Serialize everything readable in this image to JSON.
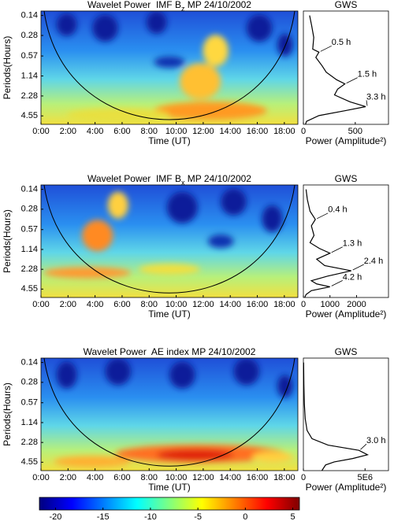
{
  "chart_data": [
    {
      "type": "heatmap",
      "title": "Wavelet Power  IMF B",
      "title_sub": "z",
      "title_end": " MP 24/10/2002",
      "xlabel": "Time (UT)",
      "ylabel": "Periods(Hours)",
      "xlim": [
        0,
        19
      ],
      "xticks": [
        {
          "value": 0,
          "label": "0:00"
        },
        {
          "value": 2,
          "label": "2:00"
        },
        {
          "value": 4,
          "label": "4:00"
        },
        {
          "value": 6,
          "label": "6:00"
        },
        {
          "value": 8,
          "label": "8:00"
        },
        {
          "value": 10,
          "label": "10:00"
        },
        {
          "value": 12,
          "label": "12:00"
        },
        {
          "value": 14,
          "label": "14:00"
        },
        {
          "value": 16,
          "label": "16:00"
        },
        {
          "value": 18,
          "label": "18:00"
        }
      ],
      "ylim": [
        0.12,
        6.1
      ],
      "yticks": [
        0.14,
        0.28,
        0.57,
        1.14,
        2.28,
        4.55
      ],
      "log_y": true
    },
    {
      "type": "line",
      "title": "GWS",
      "xlabel": "Power (Amplitude²)",
      "xlim": [
        0,
        820
      ],
      "xticks": [
        0,
        500
      ],
      "ylim": [
        0.12,
        6.1
      ],
      "log_y": true,
      "series": [
        {
          "color": "#000000",
          "values": [
            60,
            80,
            100,
            90,
            150,
            120,
            180,
            220,
            320,
            400,
            330,
            300,
            450,
            600,
            400,
            150,
            30,
            20
          ],
          "periods": [
            0.14,
            0.2,
            0.3,
            0.45,
            0.5,
            0.6,
            0.8,
            1.0,
            1.3,
            1.5,
            1.8,
            2.2,
            2.8,
            3.3,
            3.8,
            4.5,
            5.5,
            6.1
          ]
        }
      ],
      "annotations": [
        {
          "text": "0.5 h",
          "x": 150,
          "y": 0.5
        },
        {
          "text": "1.5 h",
          "x": 400,
          "y": 1.5
        },
        {
          "text": "3.3 h",
          "x": 600,
          "y": 3.3
        }
      ]
    },
    {
      "type": "heatmap",
      "title": "Wavelet Power  IMF B",
      "title_sub": "x",
      "title_end": " MP 24/10/2002",
      "xlabel": "Time (UT)",
      "ylabel": "Periods(Hours)",
      "xlim": [
        0,
        19
      ],
      "xticks": [
        {
          "value": 0,
          "label": "0:00"
        },
        {
          "value": 2,
          "label": "2:00"
        },
        {
          "value": 4,
          "label": "4:00"
        },
        {
          "value": 6,
          "label": "6:00"
        },
        {
          "value": 8,
          "label": "8:00"
        },
        {
          "value": 10,
          "label": "10:00"
        },
        {
          "value": 12,
          "label": "12:00"
        },
        {
          "value": 14,
          "label": "14:00"
        },
        {
          "value": 16,
          "label": "16:00"
        },
        {
          "value": 18,
          "label": "18:00"
        }
      ],
      "ylim": [
        0.12,
        6.1
      ],
      "yticks": [
        0.14,
        0.28,
        0.57,
        1.14,
        2.28,
        4.55
      ],
      "log_y": true
    },
    {
      "type": "line",
      "title": "GWS",
      "xlabel": "Power (Amplitude²)",
      "xlim": [
        0,
        3200
      ],
      "xticks": [
        0,
        1000,
        2000
      ],
      "ylim": [
        0.12,
        6.1
      ],
      "log_y": true,
      "series": [
        {
          "color": "#000000",
          "values": [
            100,
            150,
            250,
            450,
            300,
            400,
            250,
            600,
            1000,
            500,
            800,
            1800,
            900,
            300,
            500,
            1000,
            300,
            100,
            50
          ],
          "periods": [
            0.14,
            0.2,
            0.3,
            0.4,
            0.5,
            0.7,
            0.9,
            1.1,
            1.3,
            1.6,
            2.0,
            2.4,
            2.9,
            3.4,
            3.8,
            4.2,
            4.8,
            5.5,
            6.1
          ]
        }
      ],
      "annotations": [
        {
          "text": "0.4 h",
          "x": 450,
          "y": 0.4
        },
        {
          "text": "1.3 h",
          "x": 1000,
          "y": 1.3
        },
        {
          "text": "2.4 h",
          "x": 1800,
          "y": 2.4
        },
        {
          "text": "4.2 h",
          "x": 1000,
          "y": 4.2
        }
      ]
    },
    {
      "type": "heatmap",
      "title": "Wavelet Power  AE index MP 24/10/2002",
      "xlabel": "Time (UT)",
      "ylabel": "Periods(Hours)",
      "xlim": [
        0,
        19
      ],
      "xticks": [
        {
          "value": 0,
          "label": "0:00"
        },
        {
          "value": 2,
          "label": "2:00"
        },
        {
          "value": 4,
          "label": "4:00"
        },
        {
          "value": 6,
          "label": "6:00"
        },
        {
          "value": 8,
          "label": "8:00"
        },
        {
          "value": 10,
          "label": "10:00"
        },
        {
          "value": 12,
          "label": "12:00"
        },
        {
          "value": 14,
          "label": "14:00"
        },
        {
          "value": 16,
          "label": "16:00"
        },
        {
          "value": 18,
          "label": "18:00"
        }
      ],
      "ylim": [
        0.12,
        6.1
      ],
      "yticks": [
        0.14,
        0.28,
        0.57,
        1.14,
        2.28,
        4.55
      ],
      "log_y": true
    },
    {
      "type": "line",
      "title": "GWS",
      "xlabel": "Power (Amplitude²)",
      "xlim": [
        0,
        6900000
      ],
      "xticks": [
        0,
        {
          "value": 5000000,
          "label": "5E6"
        }
      ],
      "ylim": [
        0.12,
        6.1
      ],
      "log_y": true,
      "series": [
        {
          "color": "#000000",
          "values": [
            20000,
            40000,
            80000,
            150000,
            300000,
            700000,
            2000000,
            4500000,
            5200000,
            4000000,
            2500000,
            1800000,
            1500000
          ],
          "periods": [
            0.14,
            0.3,
            0.6,
            1.0,
            1.5,
            2.0,
            2.5,
            3.0,
            3.5,
            4.0,
            4.5,
            5.0,
            6.1
          ]
        }
      ],
      "annotations": [
        {
          "text": "3.0 h",
          "x": 4500000,
          "y": 3.0
        }
      ]
    },
    {
      "type": "colorbar",
      "xlim": [
        -21.7,
        5.7
      ],
      "xticks": [
        -20,
        -15,
        -10,
        -5,
        0,
        5
      ]
    }
  ]
}
